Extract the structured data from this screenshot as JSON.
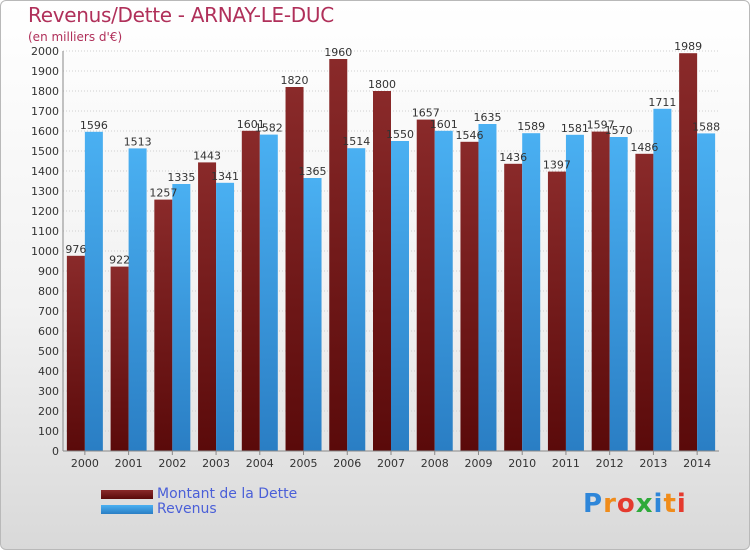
{
  "header": {
    "title": "Revenus/Dette - ARNAY-LE-DUC",
    "subtitle": "(en milliers d'€)"
  },
  "legend": {
    "dette_label": "Montant de la Dette",
    "revenus_label": "Revenus"
  },
  "logo": {
    "letters": [
      "P",
      "r",
      "o",
      "x",
      "i",
      "t",
      "i"
    ],
    "colors": [
      "#2e86d9",
      "#f08c1a",
      "#e53a2e",
      "#2eaa3a",
      "#2e86d9",
      "#f08c1a",
      "#e53a2e"
    ]
  },
  "colors": {
    "dette": "#7a1e1e",
    "revenus": "#3fa2e8",
    "title": "#b0305a",
    "legend_text": "#4a5fd8"
  },
  "chart_data": {
    "type": "bar",
    "title": "Revenus/Dette - ARNAY-LE-DUC",
    "subtitle": "(en milliers d'€)",
    "ylim": [
      0,
      2000
    ],
    "ytick_step": 100,
    "grid": true,
    "legend_position": "bottom-left",
    "categories": [
      "2000",
      "2001",
      "2002",
      "2003",
      "2004",
      "2005",
      "2006",
      "2007",
      "2008",
      "2009",
      "2010",
      "2011",
      "2012",
      "2013",
      "2014"
    ],
    "series": [
      {
        "name": "Montant de la Dette",
        "color": "#7a1e1e",
        "values": [
          976,
          922,
          1257,
          1443,
          1601,
          1820,
          1960,
          1800,
          1657,
          1546,
          1436,
          1397,
          1597,
          1486,
          1989
        ],
        "labels": [
          "976",
          "922",
          "1257",
          "1443",
          "1601",
          "1820",
          "1960",
          "1800",
          "1657",
          "1546",
          "1436",
          "1397",
          "1597",
          "1486",
          "1989"
        ]
      },
      {
        "name": "Revenus",
        "color": "#3fa2e8",
        "values": [
          1596,
          1513,
          1335,
          1341,
          1582,
          1365,
          1514,
          1550,
          1601,
          1635,
          1589,
          1581,
          1570,
          1711,
          1588
        ],
        "labels": [
          "1596",
          "1513",
          "1335",
          "1341",
          "1582",
          "1365",
          "1514",
          "1550",
          "1601",
          "1635",
          "1589",
          "1581",
          "1570",
          "1711",
          "1588"
        ]
      }
    ]
  }
}
